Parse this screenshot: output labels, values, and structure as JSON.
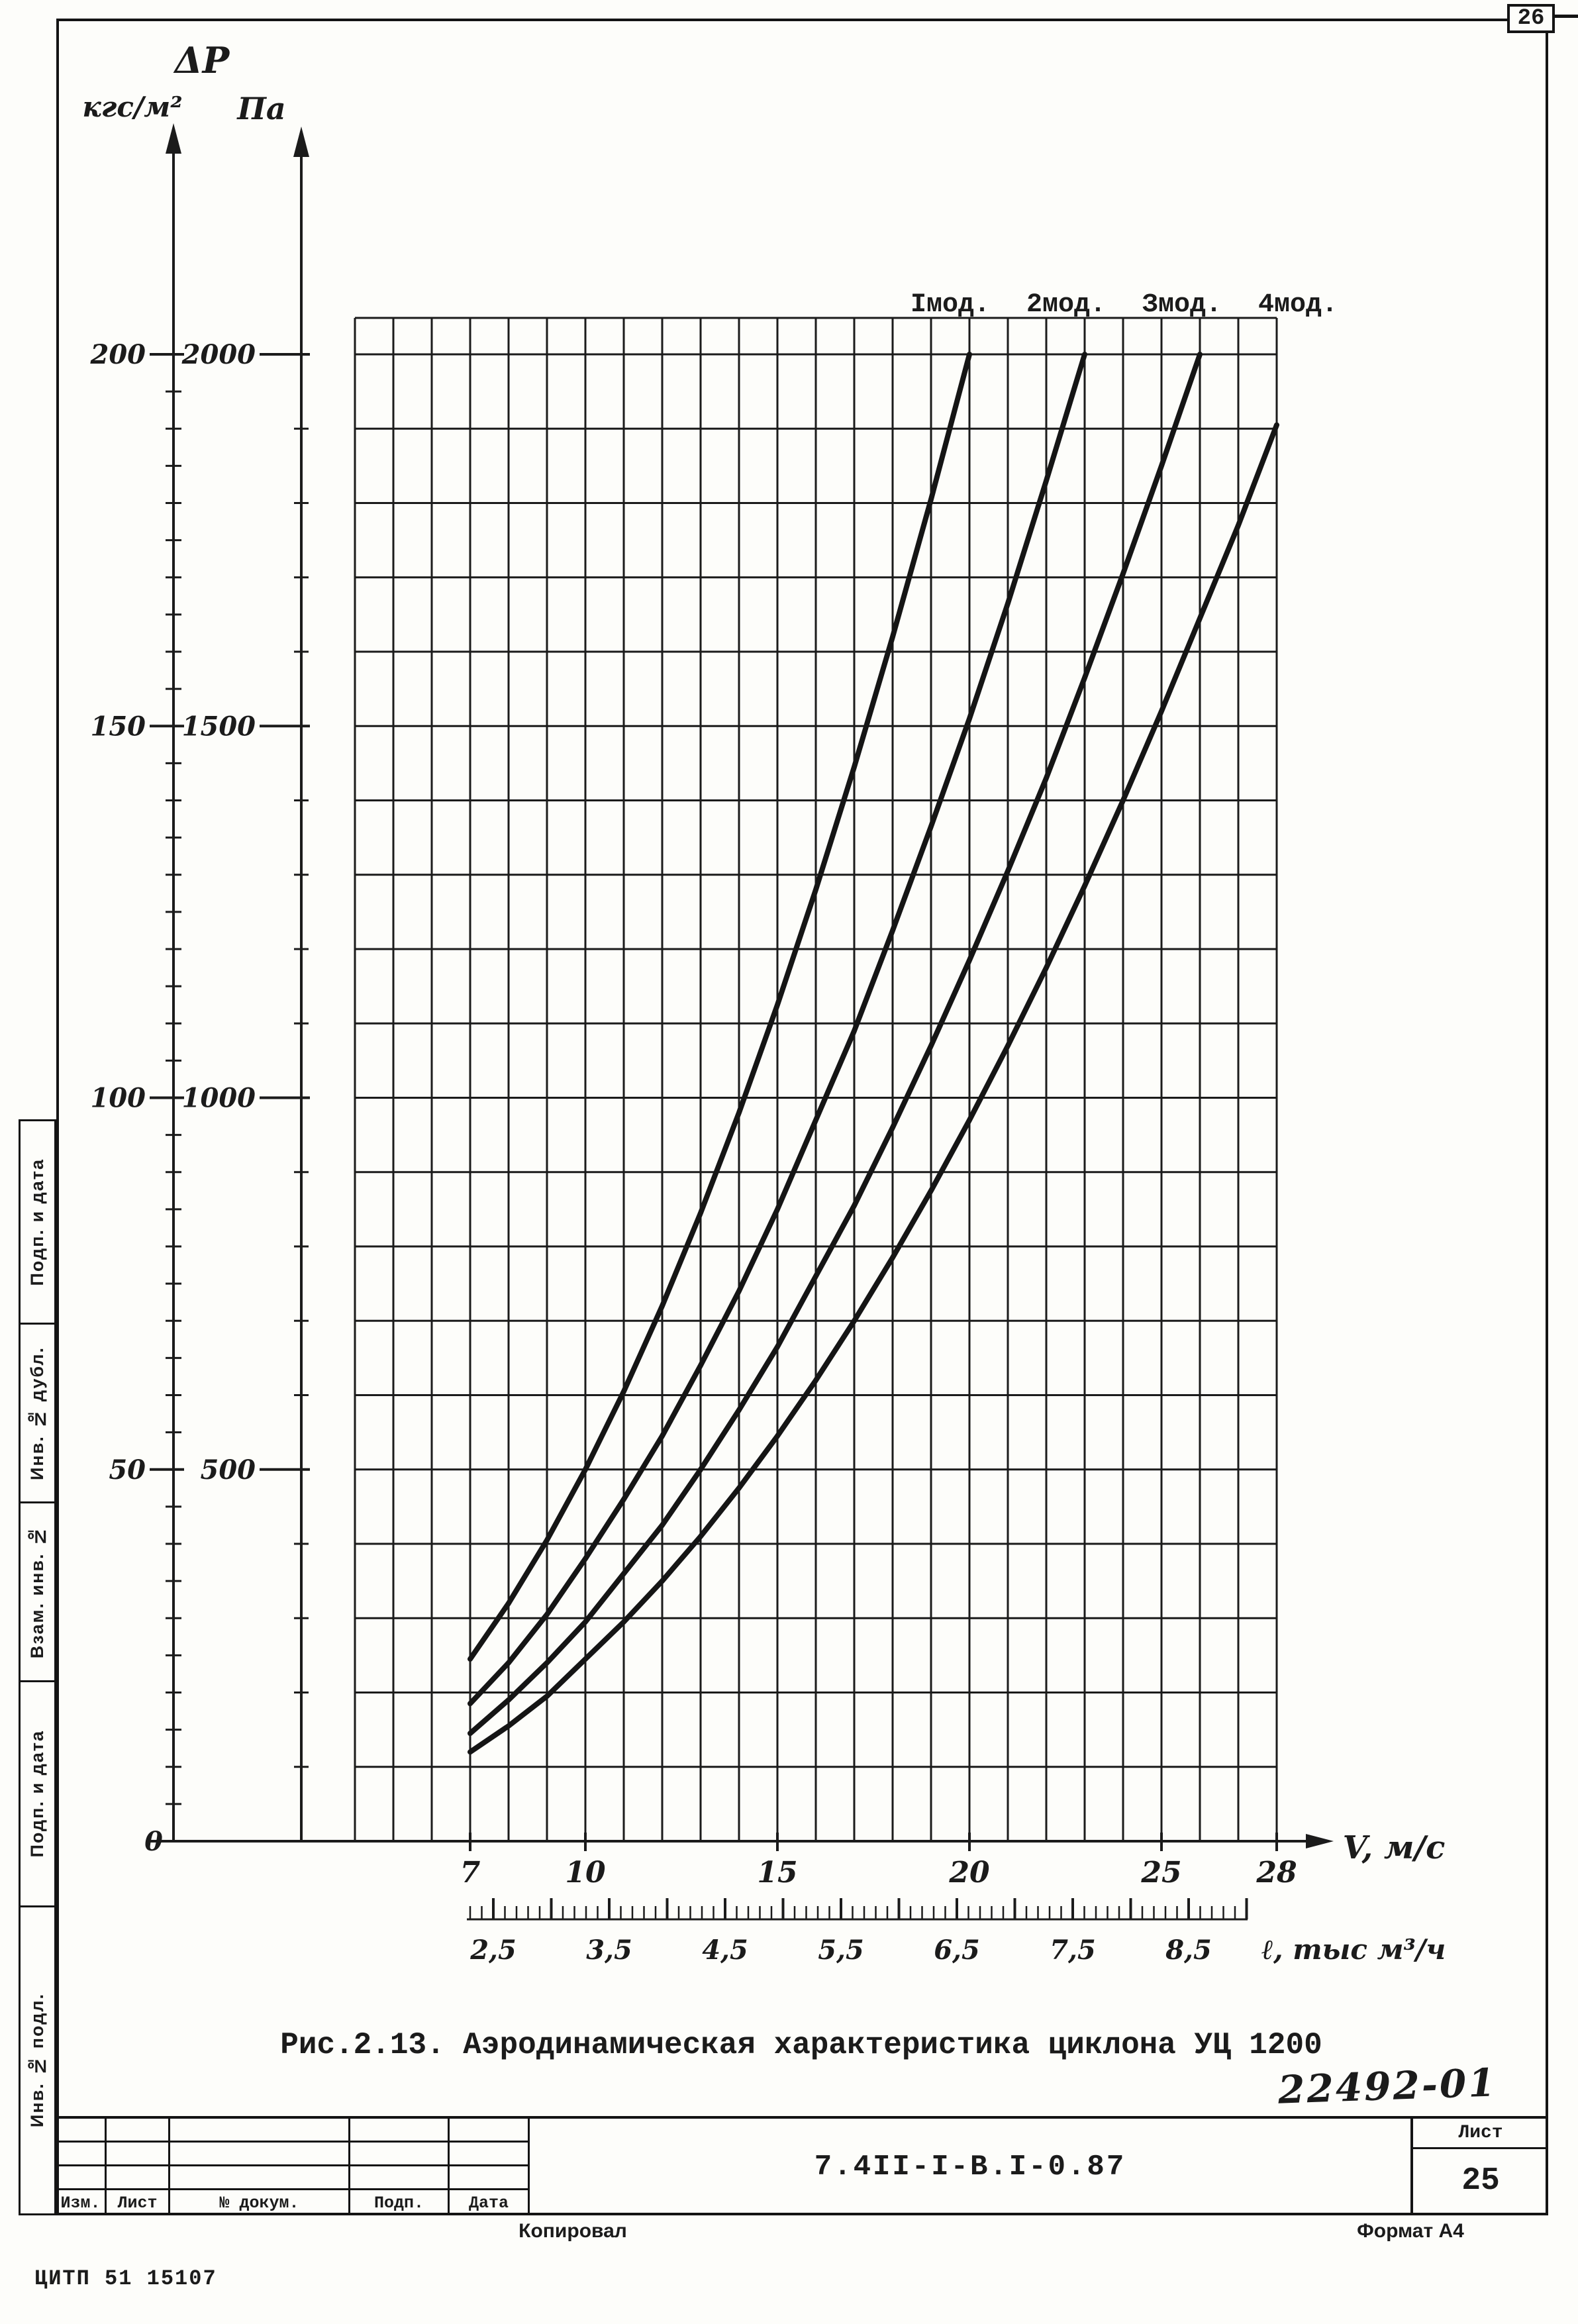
{
  "page": {
    "top_page_number": "26",
    "caption": "Рис.2.13. Аэродинамическая характеристика циклона УЦ 1200",
    "handwritten_number": "22492-01",
    "doc_code": "7.4II-I-B.I-0.87",
    "sheet_label": "Лист",
    "sheet_number": "25",
    "copied_by_label": "Копировал",
    "format_label": "Формат А4",
    "issuer_code": "ЦИТП  51 15107"
  },
  "sidebar": {
    "items": [
      {
        "label": "Подп. и дата"
      },
      {
        "label": "Инв. № дубл."
      },
      {
        "label": "Взам. инв. №"
      },
      {
        "label": "Подп. и дата"
      },
      {
        "label": "Инв. № подл."
      }
    ]
  },
  "title_block": {
    "columns": [
      "Изм.",
      "Лист",
      "№ докум.",
      "Подп.",
      "Дата"
    ]
  },
  "chart_data": {
    "type": "line",
    "title": "Рис.2.13. Аэродинамическая характеристика циклона УЦ 1200",
    "quantity_label": "ΔP",
    "y_axis_left": {
      "unit": "кгс/м²",
      "ticks": [
        0,
        50,
        100,
        150,
        200
      ],
      "minor_step": 5
    },
    "y_axis_right": {
      "unit": "Па",
      "ticks": [
        0,
        500,
        1000,
        1500,
        2000
      ],
      "minor_step": 100
    },
    "x_axis": {
      "label": "V, м/с",
      "range": [
        7,
        28
      ],
      "tick_labels": [
        7,
        10,
        15,
        20,
        25,
        28
      ]
    },
    "x_axis_secondary": {
      "label": "ℓ, тыс м³/ч",
      "tick_labels": [
        "2,5",
        "3,5",
        "4,5",
        "5,5",
        "6,5",
        "7,5",
        "8,5"
      ]
    },
    "grid": true,
    "ylim_pa": [
      0,
      2000
    ],
    "legend_position": "top-inline",
    "series": [
      {
        "name": "Iмод.",
        "points": [
          [
            7,
            245
          ],
          [
            8,
            320
          ],
          [
            9,
            405
          ],
          [
            10,
            500
          ],
          [
            11,
            605
          ],
          [
            12,
            720
          ],
          [
            13,
            845
          ],
          [
            14,
            980
          ],
          [
            15,
            1125
          ],
          [
            16,
            1280
          ],
          [
            17,
            1445
          ],
          [
            18,
            1620
          ],
          [
            19,
            1805
          ],
          [
            20,
            2000
          ]
        ]
      },
      {
        "name": "2мод.",
        "points": [
          [
            7,
            185
          ],
          [
            8,
            240
          ],
          [
            9,
            305
          ],
          [
            10,
            380
          ],
          [
            11,
            460
          ],
          [
            12,
            545
          ],
          [
            13,
            640
          ],
          [
            14,
            740
          ],
          [
            15,
            850
          ],
          [
            16,
            970
          ],
          [
            17,
            1090
          ],
          [
            18,
            1225
          ],
          [
            19,
            1365
          ],
          [
            20,
            1510
          ],
          [
            21,
            1665
          ],
          [
            22,
            1830
          ],
          [
            23,
            2000
          ]
        ]
      },
      {
        "name": "Змод.",
        "points": [
          [
            7,
            145
          ],
          [
            8,
            190
          ],
          [
            9,
            240
          ],
          [
            10,
            295
          ],
          [
            11,
            360
          ],
          [
            12,
            425
          ],
          [
            13,
            500
          ],
          [
            14,
            580
          ],
          [
            15,
            665
          ],
          [
            16,
            760
          ],
          [
            17,
            855
          ],
          [
            18,
            960
          ],
          [
            19,
            1070
          ],
          [
            20,
            1185
          ],
          [
            21,
            1305
          ],
          [
            22,
            1430
          ],
          [
            23,
            1565
          ],
          [
            24,
            1705
          ],
          [
            25,
            1850
          ],
          [
            26,
            2000
          ]
        ]
      },
      {
        "name": "4мод.",
        "points": [
          [
            7,
            120
          ],
          [
            8,
            155
          ],
          [
            9,
            195
          ],
          [
            10,
            245
          ],
          [
            11,
            295
          ],
          [
            12,
            350
          ],
          [
            13,
            410
          ],
          [
            14,
            475
          ],
          [
            15,
            545
          ],
          [
            16,
            620
          ],
          [
            17,
            700
          ],
          [
            18,
            785
          ],
          [
            19,
            875
          ],
          [
            20,
            970
          ],
          [
            21,
            1070
          ],
          [
            22,
            1175
          ],
          [
            23,
            1285
          ],
          [
            24,
            1400
          ],
          [
            25,
            1520
          ],
          [
            26,
            1645
          ],
          [
            27,
            1770
          ],
          [
            28,
            1905
          ]
        ]
      }
    ]
  }
}
